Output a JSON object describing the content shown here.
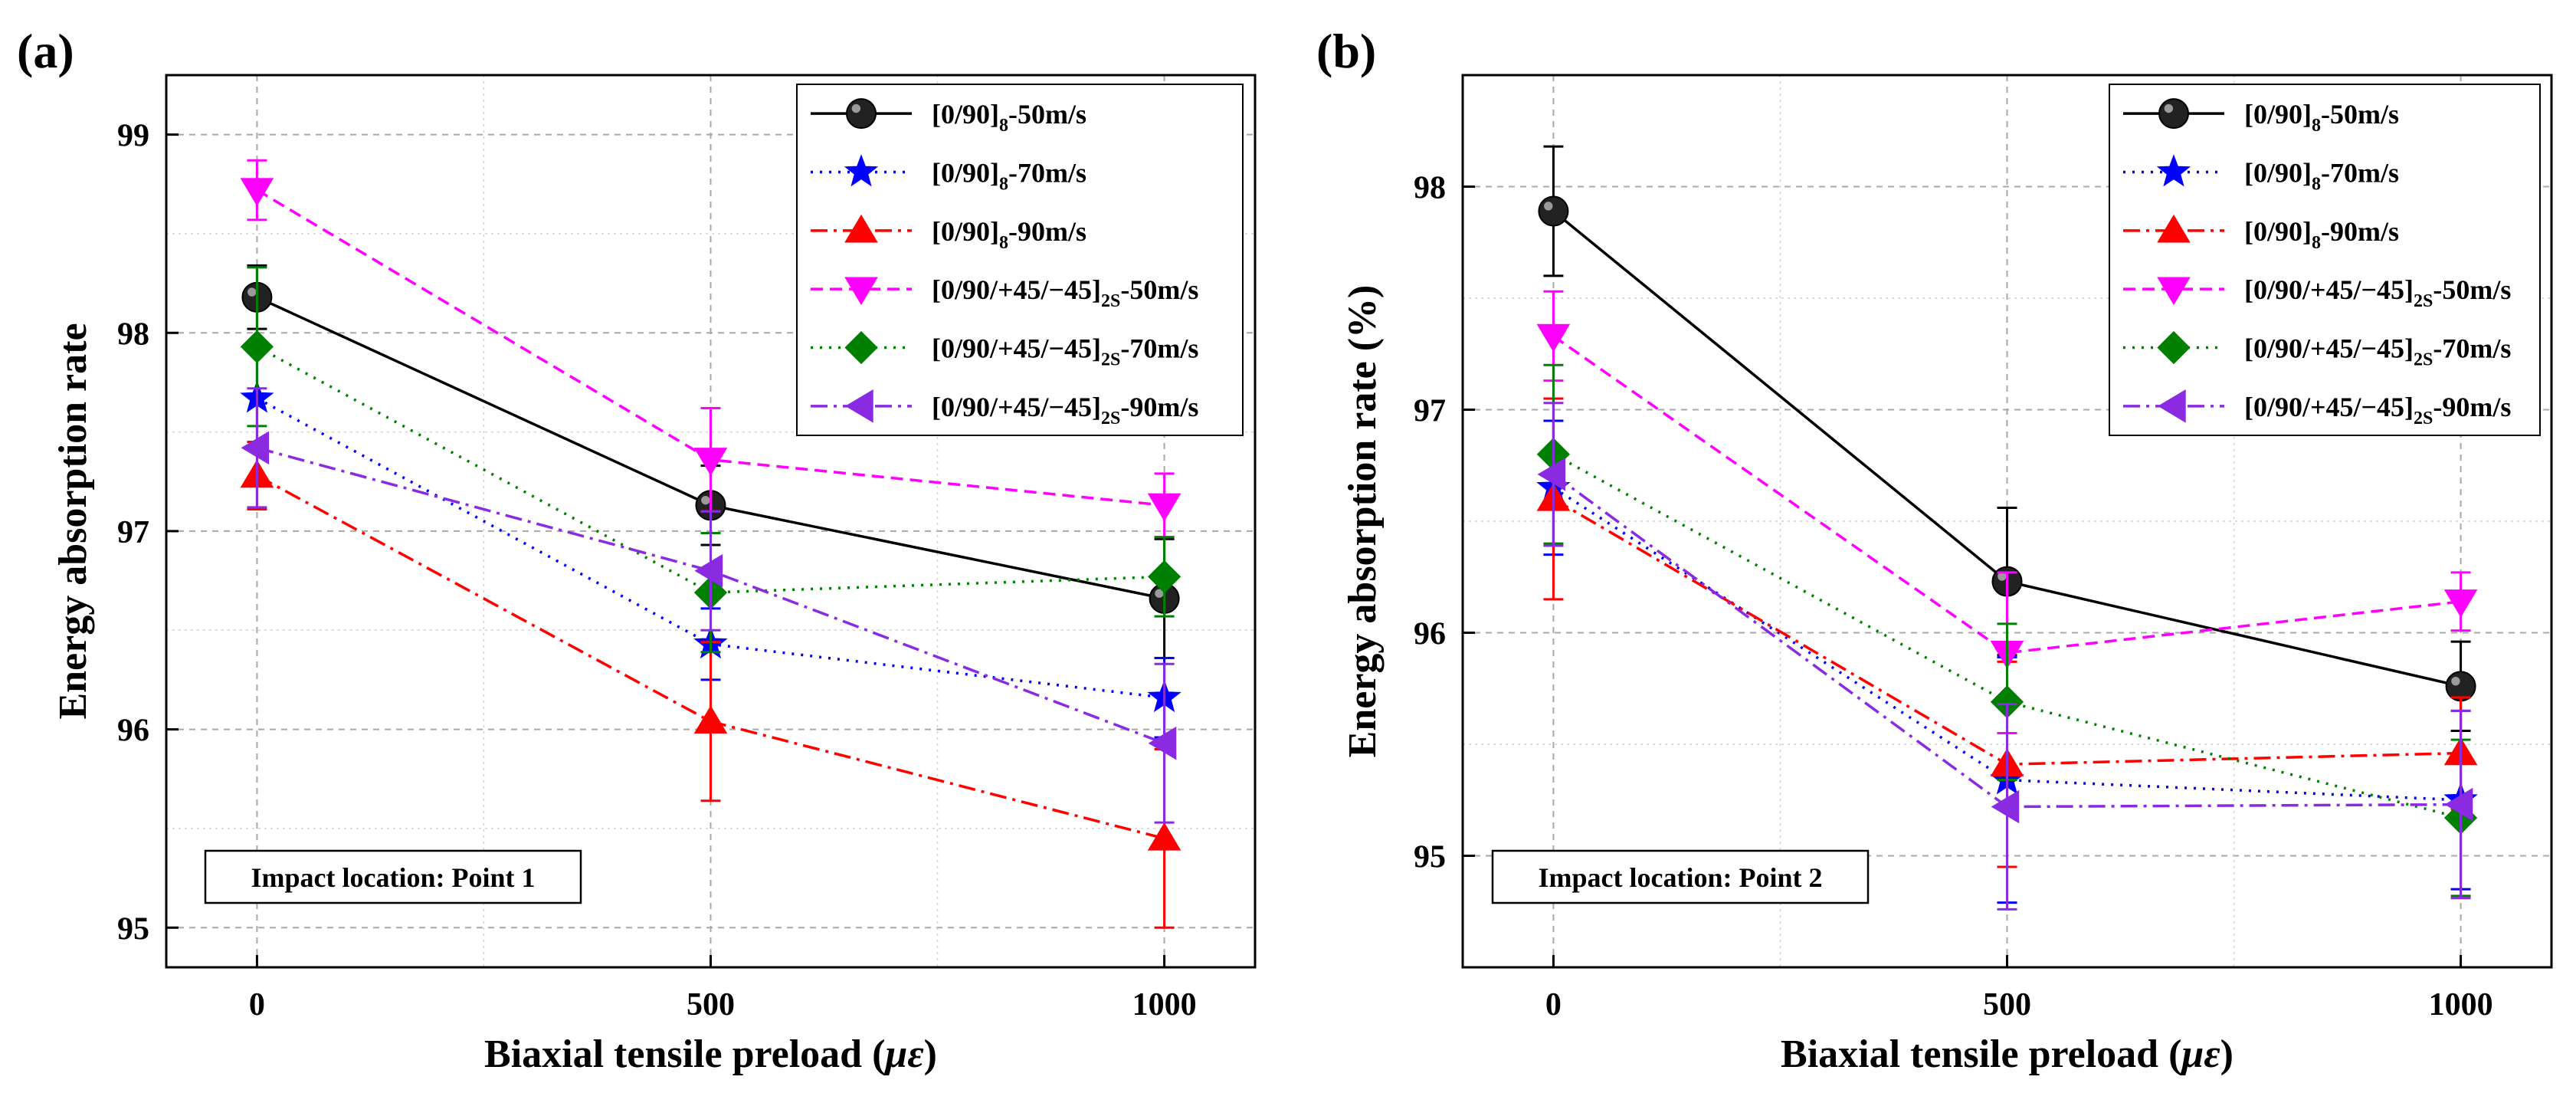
{
  "chart_data": [
    {
      "type": "line",
      "panel_label": "(a)",
      "xlabel": "Biaxial tensile preload",
      "xlabel_unit": "με",
      "ylabel": "Energy absorption rate",
      "x": [
        0,
        500,
        1000
      ],
      "xticks": [
        "0",
        "500",
        "1000"
      ],
      "xlim": [
        -100,
        1100
      ],
      "ylim": [
        94.8,
        99.3
      ],
      "yticks": [
        95,
        96,
        97,
        98,
        99
      ],
      "annotation": "Impact location: Point 1",
      "grid": true,
      "legend_position": "top-right",
      "series": [
        {
          "name": "[0/90]8-50m/s",
          "label_main": "[0/90]",
          "label_sub": "8",
          "label_tail": "-50m/s",
          "values": [
            98.18,
            97.13,
            96.66
          ],
          "errors": [
            0.16,
            0.2,
            0.3
          ],
          "color": "#000000",
          "marker": "sphere",
          "dash": "solid"
        },
        {
          "name": "[0/90]8-70m/s",
          "label_main": "[0/90]",
          "label_sub": "8",
          "label_tail": "-70m/s",
          "values": [
            97.67,
            96.43,
            96.16
          ],
          "errors": [
            0.25,
            0.18,
            0.2
          ],
          "color": "#0000ff",
          "marker": "star",
          "dash": "dot"
        },
        {
          "name": "[0/90]8-90m/s",
          "label_main": "[0/90]",
          "label_sub": "8",
          "label_tail": "-90m/s",
          "values": [
            97.28,
            96.04,
            95.45
          ],
          "errors": [
            0.17,
            0.4,
            0.45
          ],
          "color": "#ff0000",
          "marker": "triangle-up",
          "dash": "dashdot"
        },
        {
          "name": "[0/90/+45/−45]2S-50m/s",
          "label_main": "[0/90/+45/−45]",
          "label_sub": "2S",
          "label_tail": "-50m/s",
          "values": [
            98.72,
            97.36,
            97.13
          ],
          "errors": [
            0.15,
            0.26,
            0.16
          ],
          "color": "#ff00ff",
          "marker": "triangle-down",
          "dash": "dash"
        },
        {
          "name": "[0/90/+45/−45]2S-70m/s",
          "label_main": "[0/90/+45/−45]",
          "label_sub": "2S",
          "label_tail": "-70m/s",
          "values": [
            97.93,
            96.69,
            96.77
          ],
          "errors": [
            0.4,
            0.3,
            0.2
          ],
          "color": "#008000",
          "marker": "diamond",
          "dash": "dot"
        },
        {
          "name": "[0/90/+45/−45]2S-90m/s",
          "label_main": "[0/90/+45/−45]",
          "label_sub": "2S",
          "label_tail": "-90m/s",
          "values": [
            97.42,
            96.8,
            95.93
          ],
          "errors": [
            0.3,
            0.3,
            0.4
          ],
          "color": "#8a2be2",
          "marker": "triangle-left",
          "dash": "dashdot"
        }
      ]
    },
    {
      "type": "line",
      "panel_label": "(b)",
      "xlabel": "Biaxial tensile preload",
      "xlabel_unit": "με",
      "ylabel": "Energy absorption rate (%)",
      "x": [
        0,
        500,
        1000
      ],
      "xticks": [
        "0",
        "500",
        "1000"
      ],
      "xlim": [
        -100,
        1100
      ],
      "ylim": [
        94.5,
        98.5
      ],
      "yticks": [
        95,
        96,
        97,
        98
      ],
      "annotation": "Impact location: Point 2",
      "grid": true,
      "legend_position": "top-right",
      "series": [
        {
          "name": "[0/90]8-50m/s",
          "label_main": "[0/90]",
          "label_sub": "8",
          "label_tail": "-50m/s",
          "values": [
            97.89,
            96.23,
            95.76
          ],
          "errors": [
            0.29,
            0.33,
            0.2
          ],
          "color": "#000000",
          "marker": "sphere",
          "dash": "solid"
        },
        {
          "name": "[0/90]8-70m/s",
          "label_main": "[0/90]",
          "label_sub": "8",
          "label_tail": "-70m/s",
          "values": [
            96.65,
            95.34,
            95.25
          ],
          "errors": [
            0.3,
            0.55,
            0.4
          ],
          "color": "#0000ff",
          "marker": "star",
          "dash": "dot"
        },
        {
          "name": "[0/90]8-90m/s",
          "label_main": "[0/90]",
          "label_sub": "8",
          "label_tail": "-90m/s",
          "values": [
            96.6,
            95.41,
            95.46
          ],
          "errors": [
            0.45,
            0.46,
            0.25
          ],
          "color": "#ff0000",
          "marker": "triangle-up",
          "dash": "dashdot"
        },
        {
          "name": "[0/90/+45/−45]2S-50m/s",
          "label_main": "[0/90/+45/−45]",
          "label_sub": "2S",
          "label_tail": "-50m/s",
          "values": [
            97.33,
            95.91,
            96.14
          ],
          "errors": [
            0.2,
            0.36,
            0.13
          ],
          "color": "#ff00ff",
          "marker": "triangle-down",
          "dash": "dash"
        },
        {
          "name": "[0/90/+45/−45]2S-70m/s",
          "label_main": "[0/90/+45/−45]",
          "label_sub": "2S",
          "label_tail": "-70m/s",
          "values": [
            96.8,
            95.69,
            95.17
          ],
          "errors": [
            0.4,
            0.35,
            0.35
          ],
          "color": "#008000",
          "marker": "diamond",
          "dash": "dot"
        },
        {
          "name": "[0/90/+45/−45]2S-90m/s",
          "label_main": "[0/90/+45/−45]",
          "label_sub": "2S",
          "label_tail": "-90m/s",
          "values": [
            96.71,
            95.22,
            95.23
          ],
          "errors": [
            0.32,
            0.46,
            0.42
          ],
          "color": "#8a2be2",
          "marker": "triangle-left",
          "dash": "dashdot"
        }
      ]
    }
  ]
}
